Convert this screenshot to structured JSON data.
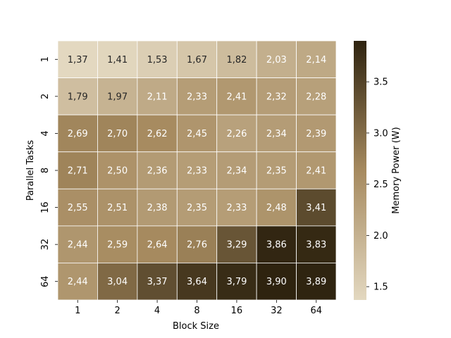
{
  "chart_data": {
    "type": "heatmap",
    "title": "",
    "xlabel": "Block Size",
    "ylabel": "Parallel Tasks",
    "x_categories": [
      "1",
      "2",
      "4",
      "8",
      "16",
      "32",
      "64"
    ],
    "y_categories": [
      "1",
      "2",
      "4",
      "8",
      "16",
      "32",
      "64"
    ],
    "values": [
      [
        1.37,
        1.41,
        1.53,
        1.67,
        1.82,
        2.03,
        2.14
      ],
      [
        1.79,
        1.97,
        2.11,
        2.33,
        2.41,
        2.32,
        2.28
      ],
      [
        2.69,
        2.7,
        2.62,
        2.45,
        2.26,
        2.34,
        2.39
      ],
      [
        2.71,
        2.5,
        2.36,
        2.33,
        2.34,
        2.35,
        2.41
      ],
      [
        2.55,
        2.51,
        2.38,
        2.35,
        2.33,
        2.48,
        3.41
      ],
      [
        2.44,
        2.59,
        2.64,
        2.76,
        3.29,
        3.86,
        3.83
      ],
      [
        2.44,
        3.04,
        3.37,
        3.64,
        3.79,
        3.9,
        3.89
      ]
    ],
    "value_labels": [
      [
        "1,37",
        "1,41",
        "1,53",
        "1,67",
        "1,82",
        "2,03",
        "2,14"
      ],
      [
        "1,79",
        "1,97",
        "2,11",
        "2,33",
        "2,41",
        "2,32",
        "2,28"
      ],
      [
        "2,69",
        "2,70",
        "2,62",
        "2,45",
        "2,26",
        "2,34",
        "2,39"
      ],
      [
        "2,71",
        "2,50",
        "2,36",
        "2,33",
        "2,34",
        "2,35",
        "2,41"
      ],
      [
        "2,55",
        "2,51",
        "2,38",
        "2,35",
        "2,33",
        "2,48",
        "3,41"
      ],
      [
        "2,44",
        "2,59",
        "2,64",
        "2,76",
        "3,29",
        "3,86",
        "3,83"
      ],
      [
        "2,44",
        "3,04",
        "3,37",
        "3,64",
        "3,79",
        "3,90",
        "3,89"
      ]
    ],
    "colorbar": {
      "label": "Memory Power (W)",
      "range": [
        1.37,
        3.9
      ],
      "ticks": [
        1.5,
        2.0,
        2.5,
        3.0,
        3.5
      ],
      "tick_labels": [
        "1.5",
        "2.0",
        "2.5",
        "3.0",
        "3.5"
      ],
      "colors": [
        "#e3d8c0",
        "#a68a5f",
        "#2e230f"
      ]
    },
    "grid": false,
    "legend": "colorbar-right"
  }
}
